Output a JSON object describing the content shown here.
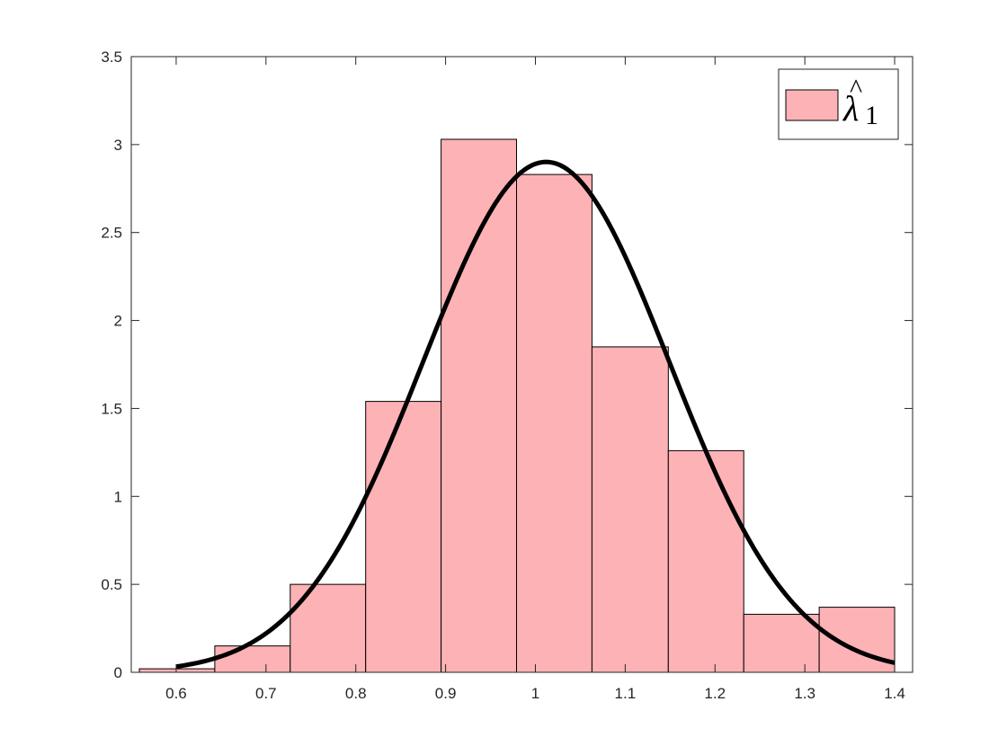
{
  "chart_data": {
    "type": "bar",
    "subtype": "histogram-with-fitted-normal-curve",
    "title": "",
    "xlabel": "",
    "ylabel": "",
    "xlim": [
      0.55,
      1.42
    ],
    "ylim": [
      0,
      3.5
    ],
    "xticks": [
      "0.6",
      "0.7",
      "0.8",
      "0.9",
      "1",
      "1.1",
      "1.2",
      "1.3",
      "1.4"
    ],
    "yticks": [
      "0",
      "0.5",
      "1",
      "1.5",
      "2",
      "2.5",
      "3",
      "3.5"
    ],
    "grid": false,
    "legend": {
      "position": "top-right",
      "entries": [
        {
          "label_base": "λ",
          "label_accent": "^",
          "label_subscript": "1"
        }
      ]
    },
    "bins": [
      {
        "x0": 0.559,
        "x1": 0.643,
        "value": 0.02
      },
      {
        "x0": 0.643,
        "x1": 0.727,
        "value": 0.15
      },
      {
        "x0": 0.727,
        "x1": 0.811,
        "value": 0.5
      },
      {
        "x0": 0.811,
        "x1": 0.895,
        "value": 1.54
      },
      {
        "x0": 0.895,
        "x1": 0.979,
        "value": 3.03
      },
      {
        "x0": 0.979,
        "x1": 1.063,
        "value": 2.83
      },
      {
        "x0": 1.063,
        "x1": 1.148,
        "value": 1.85
      },
      {
        "x0": 1.148,
        "x1": 1.232,
        "value": 1.26
      },
      {
        "x0": 1.232,
        "x1": 1.316,
        "value": 0.33
      },
      {
        "x0": 1.316,
        "x1": 1.4,
        "value": 0.37
      }
    ],
    "curve": {
      "type": "normal-pdf",
      "mean": 1.012,
      "sd": 0.1375,
      "x_range": [
        0.6,
        1.4
      ]
    },
    "colors": {
      "bar_fill": "#fdb2b5",
      "bar_edge": "#000000",
      "curve": "#000000",
      "axis": "#262626"
    }
  }
}
